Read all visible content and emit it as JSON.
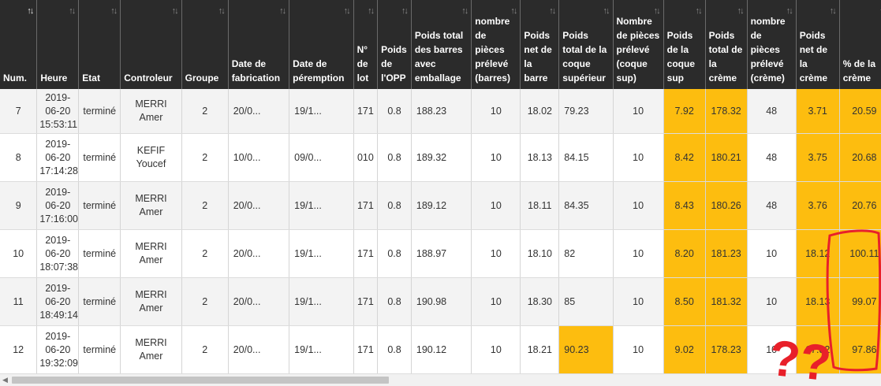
{
  "columns": [
    {
      "label": "Num.",
      "active": true
    },
    {
      "label": "Heure"
    },
    {
      "label": "Etat"
    },
    {
      "label": "Controleur"
    },
    {
      "label": "Groupe"
    },
    {
      "label": "Date de fabrication"
    },
    {
      "label": "Date de péremption"
    },
    {
      "label": "N° de lot"
    },
    {
      "label": "Poids de l'OPP"
    },
    {
      "label": "Poids total des barres avec emballage"
    },
    {
      "label": "nombre de pièces prélevé (barres)"
    },
    {
      "label": "Poids net de la barre"
    },
    {
      "label": "Poids total de la coque supérieur"
    },
    {
      "label": "Nombre de pièces prélevé (coque sup)"
    },
    {
      "label": "Poids de la coque sup"
    },
    {
      "label": "Poids total de la crème"
    },
    {
      "label": "nombre de pièces prélevé (crème)"
    },
    {
      "label": "Poids net de la crème"
    },
    {
      "label": "% de la crème"
    }
  ],
  "rows": [
    {
      "cells": [
        "7",
        "2019-06-20 15:53:11",
        "terminé",
        "MERRI Amer",
        "2",
        "20/0...",
        "19/1...",
        "171",
        "0.8",
        "188.23",
        "10",
        "18.02",
        "79.23",
        "10",
        "7.92",
        "178.32",
        "48",
        "3.71",
        "20.59"
      ],
      "highlight": [
        14,
        15,
        17,
        18
      ]
    },
    {
      "cells": [
        "8",
        "2019-06-20 17:14:28",
        "terminé",
        "KEFIF Youcef",
        "2",
        "10/0...",
        "09/0...",
        "010",
        "0.8",
        "189.32",
        "10",
        "18.13",
        "84.15",
        "10",
        "8.42",
        "180.21",
        "48",
        "3.75",
        "20.68"
      ],
      "highlight": [
        14,
        15,
        17,
        18
      ]
    },
    {
      "cells": [
        "9",
        "2019-06-20 17:16:00",
        "terminé",
        "MERRI Amer",
        "2",
        "20/0...",
        "19/1...",
        "171",
        "0.8",
        "189.12",
        "10",
        "18.11",
        "84.35",
        "10",
        "8.43",
        "180.26",
        "48",
        "3.76",
        "20.76"
      ],
      "highlight": [
        14,
        15,
        17,
        18
      ]
    },
    {
      "cells": [
        "10",
        "2019-06-20 18:07:38",
        "terminé",
        "MERRI Amer",
        "2",
        "20/0...",
        "19/1...",
        "171",
        "0.8",
        "188.97",
        "10",
        "18.10",
        "82",
        "10",
        "8.20",
        "181.23",
        "10",
        "18.12",
        "100.11"
      ],
      "highlight": [
        14,
        15,
        17,
        18
      ]
    },
    {
      "cells": [
        "11",
        "2019-06-20 18:49:14",
        "terminé",
        "MERRI Amer",
        "2",
        "20/0...",
        "19/1...",
        "171",
        "0.8",
        "190.98",
        "10",
        "18.30",
        "85",
        "10",
        "8.50",
        "181.32",
        "10",
        "18.13",
        "99.07"
      ],
      "highlight": [
        14,
        15,
        17,
        18
      ]
    },
    {
      "cells": [
        "12",
        "2019-06-20 19:32:09",
        "terminé",
        "MERRI Amer",
        "2",
        "20/0...",
        "19/1...",
        "171",
        "0.8",
        "190.12",
        "10",
        "18.21",
        "90.23",
        "10",
        "9.02",
        "178.23",
        "10",
        "17.82",
        "97.86"
      ],
      "highlight": [
        12,
        14,
        15,
        17,
        18
      ]
    }
  ],
  "annotation": {
    "text": "??",
    "color": "#e8202a"
  },
  "colors": {
    "header_bg": "#2b2b2b",
    "highlight": "#fdbd0f",
    "zebra": "#f3f3f3"
  },
  "icons": {
    "sort": "sort-arrows-icon",
    "scroll_left": "scroll-left-arrow-icon"
  }
}
